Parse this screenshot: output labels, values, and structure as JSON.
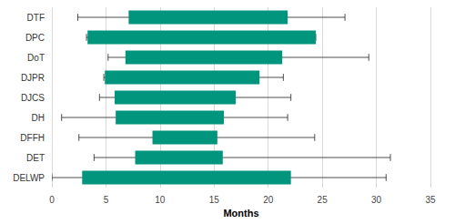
{
  "chart_data": {
    "type": "boxplot",
    "orientation": "horizontal",
    "x_label": "Months",
    "categories": [
      "DTF",
      "DPC",
      "DoT",
      "DJPR",
      "DJCS",
      "DH",
      "DFFH",
      "DET",
      "DELWP"
    ],
    "whisker_low": [
      2.4,
      3.2,
      5.2,
      4.8,
      4.4,
      0.9,
      2.5,
      3.9,
      0
    ],
    "box_low": [
      7.1,
      3.3,
      6.8,
      4.9,
      5.8,
      5.9,
      9.3,
      7.7,
      2.8
    ],
    "box_high": [
      21.8,
      24.4,
      21.3,
      19.2,
      17.0,
      15.9,
      15.3,
      15.8,
      22.1
    ],
    "whisker_high": [
      27.1,
      24.4,
      29.3,
      21.4,
      22.1,
      21.8,
      24.3,
      31.3,
      30.9
    ],
    "color": "#00957c",
    "xlim": [
      0,
      35
    ],
    "xticks": [
      0,
      5,
      10,
      15,
      20,
      25,
      30,
      35
    ],
    "grid": true
  }
}
